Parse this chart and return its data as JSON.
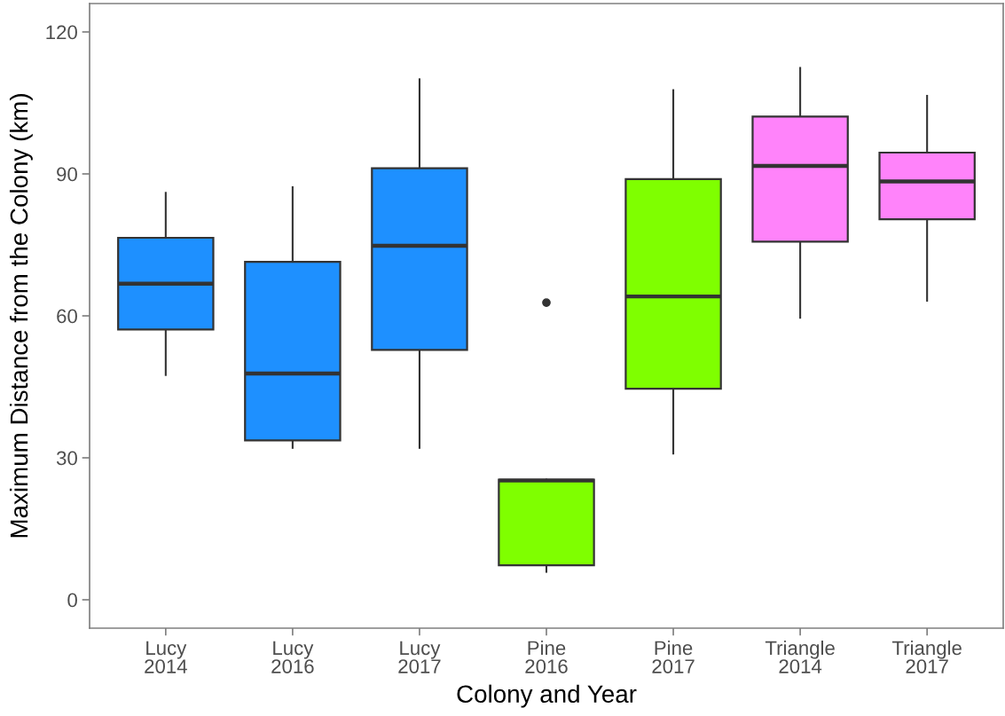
{
  "chart_data": {
    "type": "box",
    "xlabel": "Colony and Year",
    "ylabel": "Maximum Distance from the Colony (km)",
    "categories": [
      "Lucy\n2014",
      "Lucy\n2016",
      "Lucy\n2017",
      "Pine\n2016",
      "Pine\n2017",
      "Triangle\n2014",
      "Triangle\n2017"
    ],
    "colors": [
      "#1e90ff",
      "#1e90ff",
      "#1e90ff",
      "#7fff00",
      "#7fff00",
      "#ff83fa",
      "#ff83fa"
    ],
    "boxes": [
      {
        "low": 47.5,
        "q1": 57.1,
        "median": 66.8,
        "q3": 76.5,
        "high": 86.0
      },
      {
        "low": 32.1,
        "q1": 33.7,
        "median": 47.8,
        "q3": 71.4,
        "high": 87.2
      },
      {
        "low": 32.1,
        "q1": 52.8,
        "median": 74.8,
        "q3": 91.2,
        "high": 110.0
      },
      {
        "low": 5.9,
        "q1": 7.3,
        "median": 25.2,
        "q3": 25.4,
        "high": 25.4,
        "outliers": [
          62.8
        ]
      },
      {
        "low": 30.9,
        "q1": 44.6,
        "median": 64.1,
        "q3": 88.9,
        "high": 107.7
      },
      {
        "low": 59.6,
        "q1": 75.7,
        "median": 91.7,
        "q3": 102.1,
        "high": 112.4
      },
      {
        "low": 63.2,
        "q1": 80.4,
        "median": 88.4,
        "q3": 94.5,
        "high": 106.5
      }
    ],
    "ylim": [
      -6,
      126
    ],
    "yticks": [
      0,
      30,
      60,
      90,
      120
    ]
  }
}
